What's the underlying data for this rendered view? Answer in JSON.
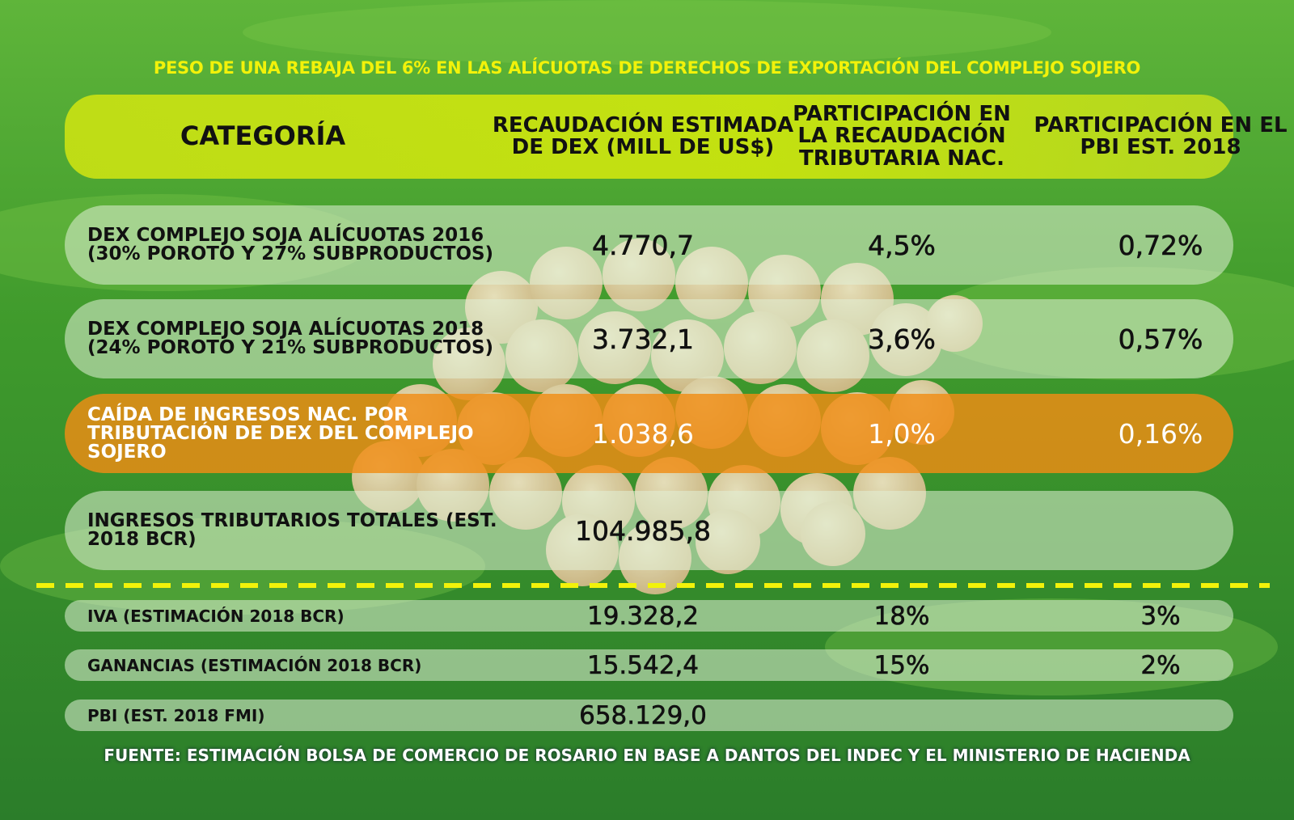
{
  "title": "PESO DE UNA REBAJA DEL 6% EN LAS ALÍCUOTAS DE DERECHOS DE EXPORTACIÓN DEL COMPLEJO SOJERO",
  "table": {
    "headers": [
      "CATEGORÍA",
      "RECAUDACIÓN ESTIMADA DE DEX (MILL DE US$)",
      "PARTICIPACIÓN EN LA RECAUDACIÓN TRIBUTARIA NAC.",
      "PARTICIPACIÓN EN EL PBI EST. 2018"
    ],
    "rows": [
      {
        "category": "DEX COMPLEJO SOJA ALÍCUOTAS 2016 (30% POROTO Y 27% SUBPRODUCTOS)",
        "recaudacion": "4.770,7",
        "part_recaudacion": "4,5%",
        "part_pbi": "0,72%"
      },
      {
        "category": "DEX COMPLEJO SOJA ALÍCUOTAS 2018 (24% POROTO Y 21% SUBPRODUCTOS)",
        "recaudacion": "3.732,1",
        "part_recaudacion": "3,6%",
        "part_pbi": "0,57%"
      },
      {
        "category": "CAÍDA DE INGRESOS NAC. POR TRIBUTACIÓN DE DEX DEL COMPLEJO SOJERO",
        "recaudacion": "1.038,6",
        "part_recaudacion": "1,0%",
        "part_pbi": "0,16%"
      },
      {
        "category": "INGRESOS TRIBUTARIOS TOTALES (EST. 2018 BCR)",
        "recaudacion": "104.985,8"
      }
    ],
    "small_rows": [
      {
        "category": "IVA (ESTIMACIÓN 2018 BCR)",
        "recaudacion": "19.328,2",
        "part_recaudacion": "18%",
        "part_pbi": "3%"
      },
      {
        "category": "GANANCIAS (ESTIMACIÓN 2018 BCR)",
        "recaudacion": "15.542,4",
        "part_recaudacion": "15%",
        "part_pbi": "2%"
      },
      {
        "category": "PBI (EST. 2018 FMI)",
        "recaudacion": "658.129,0"
      }
    ]
  },
  "source": "FUENTE: ESTIMACIÓN BOLSA DE COMERCIO DE ROSARIO EN BASE A DANTOS DEL INDEC Y EL MINISTERIO DE HACIENDA"
}
